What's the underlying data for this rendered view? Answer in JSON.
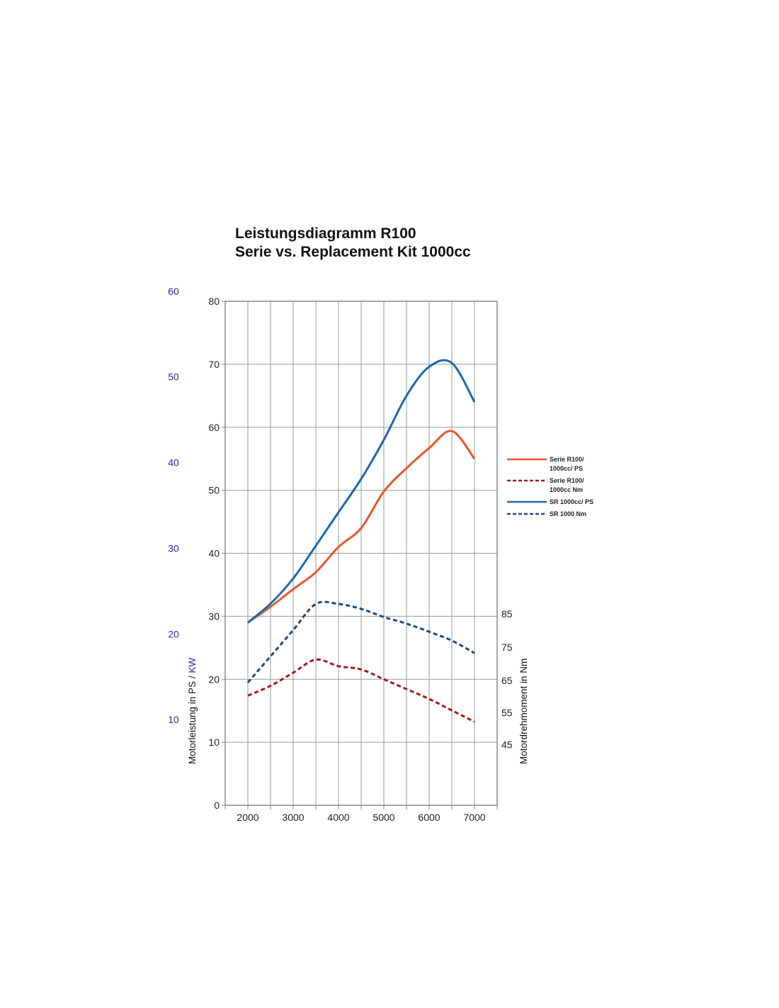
{
  "chart_data": {
    "type": "line",
    "title_lines": [
      "Leistungsdiagramm R100",
      "Serie vs. Replacement Kit 1000cc"
    ],
    "xlabel": "",
    "x": [
      2000,
      2500,
      3000,
      3500,
      4000,
      4500,
      5000,
      5500,
      6000,
      6500,
      7000
    ],
    "xticks": [
      2000,
      3000,
      4000,
      5000,
      6000,
      7000
    ],
    "xlim": [
      1500,
      7500
    ],
    "y_left": {
      "label_parts": [
        {
          "text": "Motorleistung in PS",
          "color": "#111111"
        },
        {
          "text": " / ",
          "color": "#111111"
        },
        {
          "text": "KW",
          "color": "#2a2aa0"
        }
      ],
      "lim": [
        0,
        80
      ],
      "ticks": [
        0,
        10,
        20,
        30,
        40,
        50,
        60,
        70,
        80
      ]
    },
    "y_kw": {
      "ticks": [
        {
          "label": "60",
          "ps": 81.6
        },
        {
          "label": "50",
          "ps": 68
        },
        {
          "label": "40",
          "ps": 54.4
        },
        {
          "label": "30",
          "ps": 40.8
        },
        {
          "label": "20",
          "ps": 27.2
        },
        {
          "label": "10",
          "ps": 13.6
        }
      ],
      "color": "#2a2aa0"
    },
    "y_right": {
      "label": "Motordrehmoment in Nm",
      "ticks": [
        {
          "label": "85",
          "ps": 30.4
        },
        {
          "label": "75",
          "ps": 25.1
        },
        {
          "label": "65",
          "ps": 19.8
        },
        {
          "label": "55",
          "ps": 14.7
        },
        {
          "label": "45",
          "ps": 9.6
        }
      ]
    },
    "grid": true,
    "legend_position": "right",
    "series": [
      {
        "name_lines": [
          "Serie R100/",
          "1000cc/ PS"
        ],
        "axis": "left",
        "color": "#e8562a",
        "dash": false,
        "values": [
          29,
          31.5,
          34.3,
          37,
          41,
          44,
          49.8,
          53.5,
          56.7,
          59.4,
          55
        ]
      },
      {
        "name_lines": [
          "Serie R100/",
          "1000cc Nm"
        ],
        "axis": "right",
        "color": "#a31a1a",
        "dash": true,
        "values": [
          60,
          63,
          67,
          71,
          69,
          68,
          65,
          62,
          59,
          55.5,
          52
        ]
      },
      {
        "name_lines": [
          "SR 1000cc/ PS"
        ],
        "axis": "left",
        "color": "#1e67b0",
        "dash": false,
        "values": [
          29,
          32,
          36,
          41.2,
          46.5,
          51.8,
          58,
          65,
          69.6,
          70.2,
          64
        ]
      },
      {
        "name_lines": [
          "SR 1000 Nm"
        ],
        "axis": "right",
        "color": "#1c4a7a",
        "dash": true,
        "values": [
          64,
          72,
          80,
          88,
          88,
          86.5,
          84,
          82,
          79.5,
          76.8,
          73
        ]
      }
    ]
  }
}
